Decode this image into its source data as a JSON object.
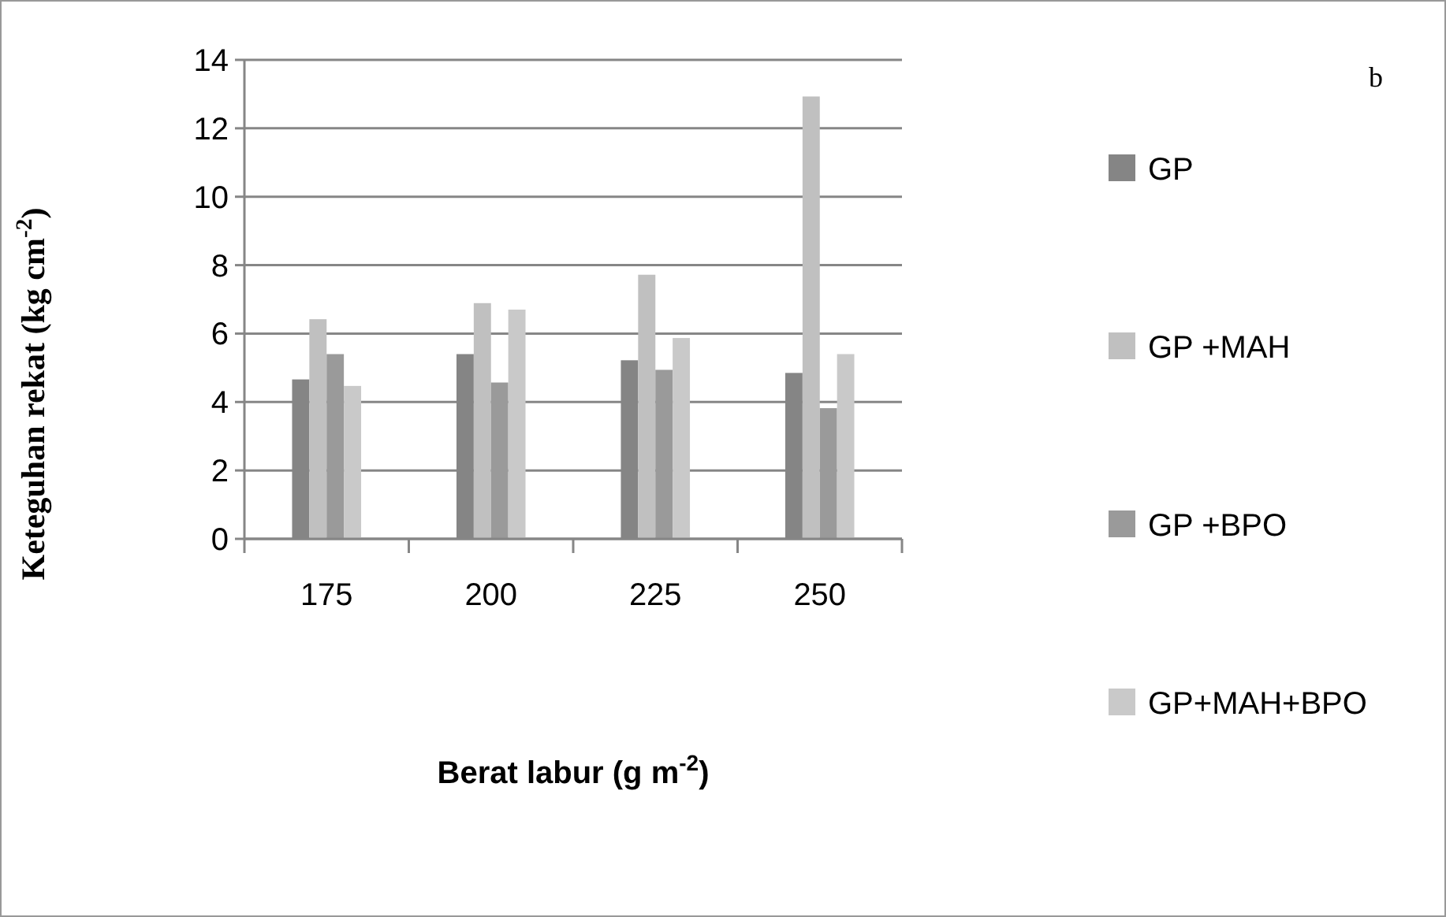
{
  "chart_data": {
    "type": "bar",
    "xlabel": "Berat  labur (g m$^{-2}$)",
    "ylabel": "Keteguhan  rekat  (kg cm$^{-2}$)",
    "annotations": [
      "b"
    ],
    "categories": [
      "175",
      "200",
      "225",
      "250"
    ],
    "series": [
      {
        "name": "GP",
        "color": "#858585",
        "values": [
          4.66,
          5.4,
          5.22,
          4.85
        ]
      },
      {
        "name": "GP +MAH",
        "color": "#c0c0c0",
        "values": [
          6.42,
          6.89,
          7.72,
          12.93
        ]
      },
      {
        "name": "GP +BPO",
        "color": "#9a9a9a",
        "values": [
          5.4,
          4.57,
          4.94,
          3.82
        ]
      },
      {
        "name": "GP+MAH+BPO",
        "color": "#c9c9c9",
        "values": [
          4.47,
          6.7,
          5.87,
          5.4
        ]
      }
    ],
    "ylim": [
      0,
      14
    ],
    "yticks": [
      0,
      2,
      4,
      6,
      8,
      10,
      12,
      14
    ],
    "grid": "y",
    "legend": "right"
  }
}
